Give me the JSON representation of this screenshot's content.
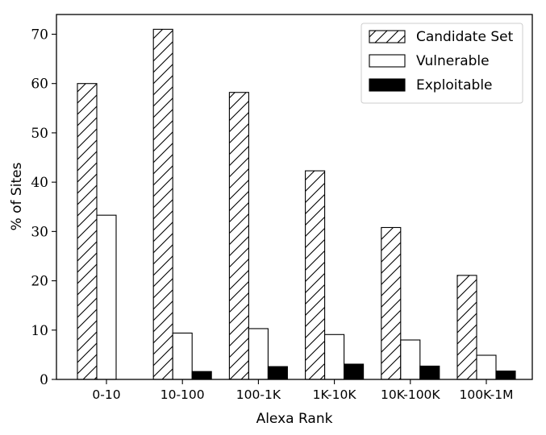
{
  "chart_data": {
    "type": "bar",
    "title": "",
    "xlabel": "Alexa Rank",
    "ylabel": "% of Sites",
    "categories": [
      "0-10",
      "10-100",
      "100-1K",
      "1K-10K",
      "10K-100K",
      "100K-1M"
    ],
    "series": [
      {
        "name": "Candidate Set",
        "values": [
          60,
          71,
          58.2,
          42.3,
          30.8,
          21.1
        ],
        "fill": "hatch"
      },
      {
        "name": "Vulnerable",
        "values": [
          33.3,
          9.4,
          10.3,
          9.1,
          8.0,
          4.9
        ],
        "fill": "#ffffff"
      },
      {
        "name": "Exploitable",
        "values": [
          0,
          1.6,
          2.6,
          3.1,
          2.7,
          1.7
        ],
        "fill": "#000000"
      }
    ],
    "ylim": [
      0,
      74
    ],
    "yticks": [
      0,
      10,
      20,
      30,
      40,
      50,
      60,
      70
    ],
    "grid": false,
    "legend_position": "top-right"
  }
}
